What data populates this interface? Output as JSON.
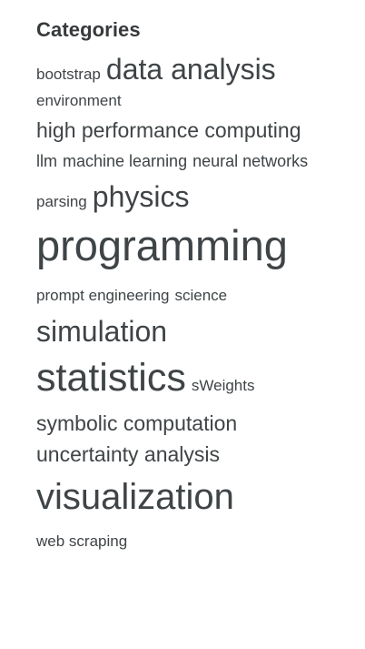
{
  "sidebar": {
    "title": "Categories",
    "tags": [
      {
        "label": "bootstrap"
      },
      {
        "label": "data analysis"
      },
      {
        "label": "environment"
      },
      {
        "label": "high performance computing"
      },
      {
        "label": "llm"
      },
      {
        "label": "machine learning"
      },
      {
        "label": "neural networks"
      },
      {
        "label": "parsing"
      },
      {
        "label": "physics"
      },
      {
        "label": "programming"
      },
      {
        "label": "prompt engineering"
      },
      {
        "label": "science"
      },
      {
        "label": "simulation"
      },
      {
        "label": "statistics"
      },
      {
        "label": "sWeights"
      },
      {
        "label": "symbolic computation"
      },
      {
        "label": "uncertainty analysis"
      },
      {
        "label": "visualization"
      },
      {
        "label": "web scraping"
      }
    ]
  }
}
